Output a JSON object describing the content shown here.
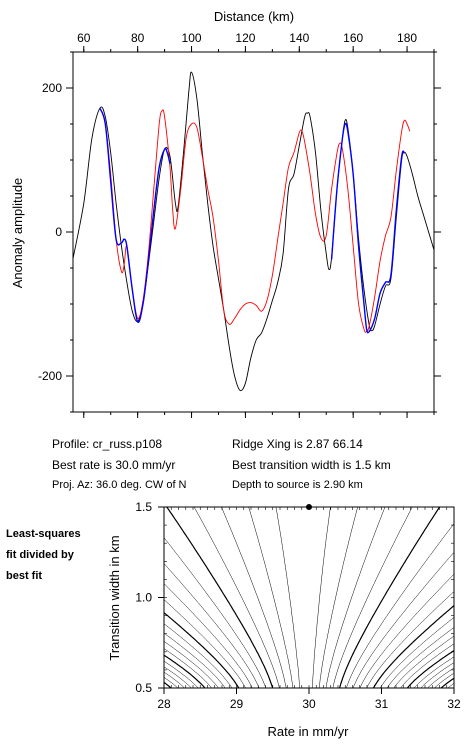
{
  "chart_data": [
    {
      "type": "line",
      "title": "",
      "xlabel": "Distance (km)",
      "ylabel": "Anomaly amplitude",
      "xlim": [
        56,
        190
      ],
      "ylim": [
        -250,
        250
      ],
      "xticks": [
        60,
        80,
        100,
        120,
        140,
        160,
        180
      ],
      "yticks": [
        -200,
        0,
        200
      ],
      "series": [
        {
          "color": "#000000",
          "values": [
            [
              56,
              -37
            ],
            [
              60,
              40
            ],
            [
              63,
              130
            ],
            [
              66,
              172
            ],
            [
              68,
              160
            ],
            [
              70,
              110
            ],
            [
              72,
              40
            ],
            [
              74,
              -20
            ],
            [
              76,
              -70
            ],
            [
              78,
              -110
            ],
            [
              80,
              -124
            ],
            [
              82,
              -100
            ],
            [
              84,
              -45
            ],
            [
              86,
              15
            ],
            [
              88,
              75
            ],
            [
              90,
              115
            ],
            [
              92,
              105
            ],
            [
              94,
              40
            ],
            [
              95,
              35
            ],
            [
              97,
              110
            ],
            [
              99,
              195
            ],
            [
              100,
              222
            ],
            [
              102,
              185
            ],
            [
              104,
              110
            ],
            [
              106,
              40
            ],
            [
              108,
              -20
            ],
            [
              110,
              -65
            ],
            [
              112,
              -110
            ],
            [
              114,
              -160
            ],
            [
              116,
              -200
            ],
            [
              118,
              -220
            ],
            [
              120,
              -210
            ],
            [
              122,
              -175
            ],
            [
              124,
              -150
            ],
            [
              126,
              -140
            ],
            [
              128,
              -120
            ],
            [
              130,
              -95
            ],
            [
              132,
              -70
            ],
            [
              134,
              -30
            ],
            [
              136,
              60
            ],
            [
              138,
              80
            ],
            [
              140,
              120
            ],
            [
              142,
              160
            ],
            [
              143,
              165
            ],
            [
              144,
              160
            ],
            [
              146,
              110
            ],
            [
              148,
              30
            ],
            [
              150,
              -30
            ],
            [
              151,
              -52
            ],
            [
              152,
              -35
            ],
            [
              154,
              60
            ],
            [
              156,
              130
            ],
            [
              157,
              155
            ],
            [
              158,
              145
            ],
            [
              160,
              80
            ],
            [
              162,
              -10
            ],
            [
              164,
              -80
            ],
            [
              166,
              -130
            ],
            [
              167,
              -137
            ],
            [
              168,
              -130
            ],
            [
              170,
              -100
            ],
            [
              172,
              -75
            ],
            [
              174,
              -65
            ],
            [
              176,
              20
            ],
            [
              178,
              100
            ],
            [
              179,
              110
            ],
            [
              180,
              105
            ],
            [
              182,
              80
            ],
            [
              184,
              50
            ],
            [
              186,
              25
            ],
            [
              188,
              0
            ],
            [
              190,
              -25
            ]
          ]
        },
        {
          "color": "#ff0000",
          "values": [
            [
              66,
              172
            ],
            [
              68,
              150
            ],
            [
              70,
              80
            ],
            [
              72,
              -10
            ],
            [
              74,
              -55
            ],
            [
              75,
              -45
            ],
            [
              76,
              -20
            ],
            [
              78,
              -80
            ],
            [
              80,
              -120
            ],
            [
              82,
              -95
            ],
            [
              84,
              -30
            ],
            [
              86,
              60
            ],
            [
              88,
              150
            ],
            [
              89,
              168
            ],
            [
              90,
              160
            ],
            [
              92,
              90
            ],
            [
              93,
              30
            ],
            [
              94,
              5
            ],
            [
              96,
              60
            ],
            [
              98,
              130
            ],
            [
              100,
              150
            ],
            [
              102,
              145
            ],
            [
              104,
              105
            ],
            [
              106,
              60
            ],
            [
              108,
              20
            ],
            [
              110,
              -40
            ],
            [
              112,
              -110
            ],
            [
              114,
              -128
            ],
            [
              116,
              -120
            ],
            [
              118,
              -108
            ],
            [
              120,
              -100
            ],
            [
              122,
              -98
            ],
            [
              124,
              -102
            ],
            [
              126,
              -110
            ],
            [
              128,
              -95
            ],
            [
              130,
              -60
            ],
            [
              132,
              -10
            ],
            [
              134,
              40
            ],
            [
              136,
              90
            ],
            [
              138,
              110
            ],
            [
              140,
              138
            ],
            [
              141,
              140
            ],
            [
              142,
              125
            ],
            [
              144,
              80
            ],
            [
              146,
              25
            ],
            [
              148,
              -8
            ],
            [
              150,
              -5
            ],
            [
              152,
              60
            ],
            [
              154,
              110
            ],
            [
              155,
              123
            ],
            [
              156,
              115
            ],
            [
              158,
              60
            ],
            [
              160,
              -20
            ],
            [
              162,
              -100
            ],
            [
              164,
              -135
            ],
            [
              165,
              -138
            ],
            [
              166,
              -130
            ],
            [
              168,
              -90
            ],
            [
              170,
              -40
            ],
            [
              172,
              -5
            ],
            [
              174,
              20
            ],
            [
              176,
              85
            ],
            [
              178,
              140
            ],
            [
              179,
              155
            ],
            [
              180,
              150
            ],
            [
              181,
              140
            ]
          ]
        },
        {
          "color": "#0000ff",
          "values": [
            [
              66,
              172
            ],
            [
              68,
              150
            ],
            [
              70,
              70
            ],
            [
              72,
              -10
            ],
            [
              74,
              -15
            ],
            [
              75,
              -10
            ],
            [
              76,
              -20
            ],
            [
              78,
              -80
            ],
            [
              80,
              -125
            ],
            [
              82,
              -100
            ],
            [
              84,
              -40
            ],
            [
              86,
              30
            ],
            [
              88,
              90
            ],
            [
              90,
              115
            ],
            [
              91,
              110
            ],
            [
              92,
              95
            ],
            [
              152,
              -38
            ],
            [
              154,
              60
            ],
            [
              156,
              130
            ],
            [
              157,
              150
            ],
            [
              158,
              140
            ],
            [
              160,
              80
            ],
            [
              162,
              -20
            ],
            [
              164,
              -100
            ],
            [
              165,
              -135
            ],
            [
              166,
              -138
            ],
            [
              168,
              -120
            ],
            [
              170,
              -85
            ],
            [
              172,
              -70
            ],
            [
              174,
              -60
            ],
            [
              176,
              30
            ],
            [
              178,
              105
            ],
            [
              179,
              110
            ]
          ]
        }
      ]
    },
    {
      "type": "contour",
      "title": "",
      "xlabel": "Rate in mm/yr",
      "ylabel": "Transition width in km",
      "xlim": [
        28,
        32
      ],
      "ylim": [
        0.5,
        1.5
      ],
      "xticks": [
        28,
        29,
        30,
        31,
        32
      ],
      "yticks": [
        0.5,
        1.0,
        1.5
      ],
      "best_fit_point": [
        30.0,
        1.5
      ]
    }
  ],
  "info": {
    "profile": "Profile: cr_russ.p108",
    "best_rate": "Best rate is 30.0 mm/yr",
    "proj_az": "Proj. Az: 36.0 deg. CW of N",
    "ridge_xing": "Ridge Xing is 2.87 66.14",
    "best_width": "Best transition width is 1.5 km",
    "depth": "Depth to source is    2.90 km"
  },
  "side_label": [
    "Least-squares",
    "fit divided by",
    "best fit"
  ],
  "colors": {
    "observed": "#000000",
    "model": "#ff0000",
    "fit_segment": "#0000ff",
    "contour": "#000000"
  }
}
